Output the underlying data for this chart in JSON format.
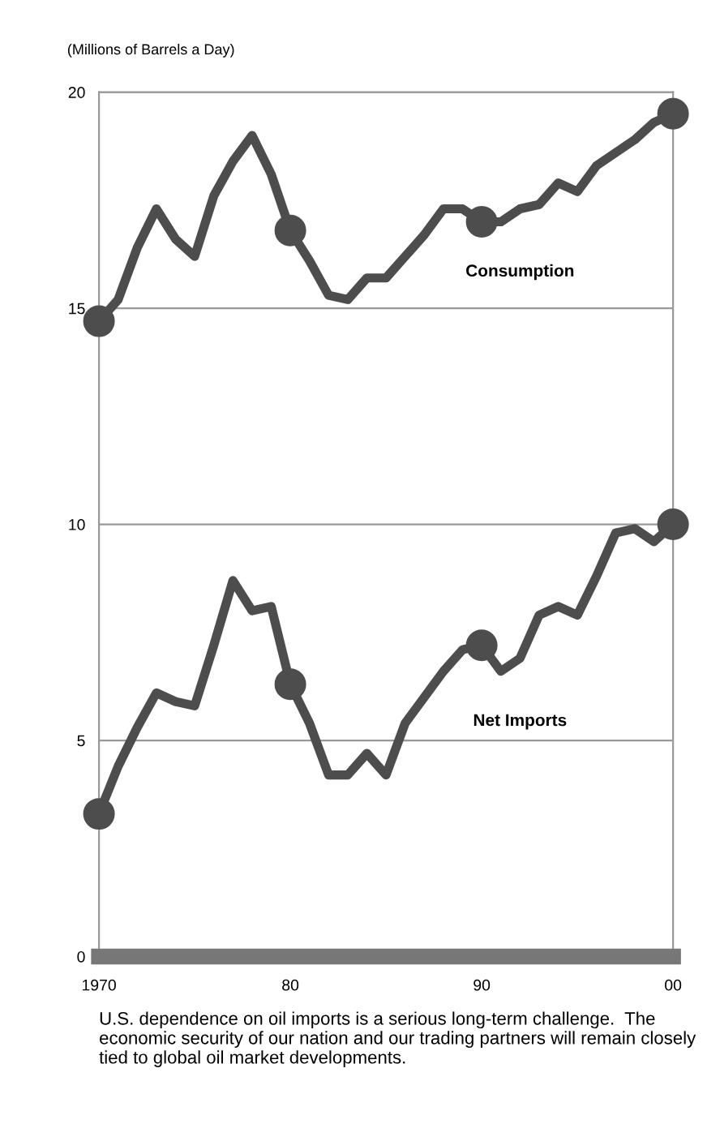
{
  "chart_data": {
    "type": "line",
    "ylabel": "(Millions of Barrels a Day)",
    "x": [
      1970,
      1971,
      1972,
      1973,
      1974,
      1975,
      1976,
      1977,
      1978,
      1979,
      1980,
      1981,
      1982,
      1983,
      1984,
      1985,
      1986,
      1987,
      1988,
      1989,
      1990,
      1991,
      1992,
      1993,
      1994,
      1995,
      1996,
      1997,
      1998,
      1999,
      2000
    ],
    "series": [
      {
        "name": "Consumption",
        "color": "#4d4d4d",
        "values": [
          14.7,
          15.2,
          16.4,
          17.3,
          16.6,
          16.2,
          17.6,
          18.4,
          19.0,
          18.1,
          16.8,
          16.1,
          15.3,
          15.2,
          15.7,
          15.7,
          16.2,
          16.7,
          17.3,
          17.3,
          17.0,
          17.0,
          17.3,
          17.4,
          17.9,
          17.7,
          18.3,
          18.6,
          18.9,
          19.3,
          19.5
        ]
      },
      {
        "name": "Net Imports",
        "color": "#4d4d4d",
        "values": [
          3.3,
          4.4,
          5.3,
          6.1,
          5.9,
          5.8,
          7.2,
          8.7,
          8.0,
          8.1,
          6.3,
          5.4,
          4.2,
          4.2,
          4.7,
          4.2,
          5.4,
          6.0,
          6.6,
          7.1,
          7.2,
          6.6,
          6.9,
          7.9,
          8.1,
          7.9,
          8.8,
          9.8,
          9.9,
          9.6,
          10.0
        ]
      },
      {
        "type": "scatter",
        "color": "#4d4d4d",
        "marker": "circle",
        "x": [
          1970,
          1980,
          1990,
          2000
        ],
        "values": [
          14.7,
          16.8,
          17.0,
          19.5
        ]
      },
      {
        "type": "scatter",
        "color": "#4d4d4d",
        "marker": "circle",
        "x": [
          1970,
          1980,
          1990,
          2000
        ],
        "values": [
          3.3,
          6.3,
          7.2,
          10.0
        ]
      }
    ],
    "xlim": [
      1970,
      2000
    ],
    "xticks": [
      {
        "value": 1970,
        "label": "1970"
      },
      {
        "value": 1980,
        "label": "80"
      },
      {
        "value": 1990,
        "label": "90"
      },
      {
        "value": 2000,
        "label": "00"
      }
    ],
    "ylim": [
      0,
      20
    ],
    "yticks": [
      0,
      5,
      10,
      15,
      20
    ],
    "grid": "y",
    "annotations": [
      "U.S. dependence on oil imports is a serious long-term challenge.  The economic security of our nation and our trading partners will remain closely tied to global oil market developments."
    ]
  }
}
